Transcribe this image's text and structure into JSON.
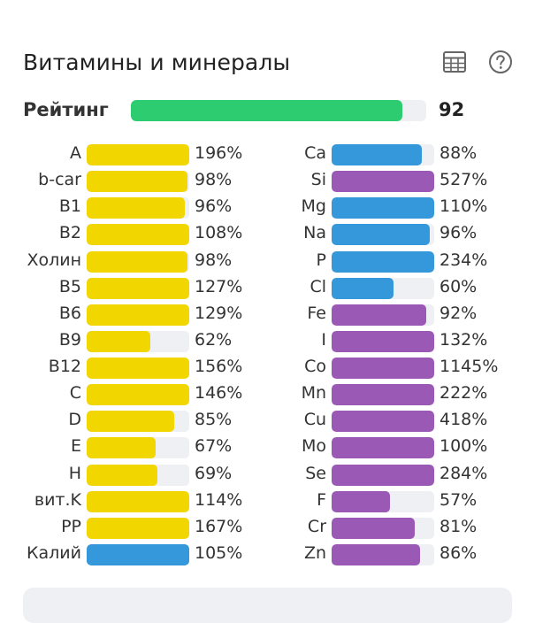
{
  "colors": {
    "vitamin": "#f2d600",
    "mineral_blue": "#3498db",
    "mineral_purple": "#9b59b6",
    "rating": "#2ecc71"
  },
  "section": {
    "title": "Витамины и минералы",
    "table_icon": "table-icon",
    "help_icon": "help-circle-icon"
  },
  "rating": {
    "label": "Рейтинг",
    "value": "92",
    "fraction": 0.92
  },
  "left_column": [
    {
      "label": "A",
      "pct": "196%",
      "fill": 1.0,
      "color": "vitamin"
    },
    {
      "label": "b-car",
      "pct": "98%",
      "fill": 0.98,
      "color": "vitamin"
    },
    {
      "label": "B1",
      "pct": "96%",
      "fill": 0.96,
      "color": "vitamin"
    },
    {
      "label": "B2",
      "pct": "108%",
      "fill": 1.0,
      "color": "vitamin"
    },
    {
      "label": "Холин",
      "pct": "98%",
      "fill": 0.98,
      "color": "vitamin"
    },
    {
      "label": "B5",
      "pct": "127%",
      "fill": 1.0,
      "color": "vitamin"
    },
    {
      "label": "B6",
      "pct": "129%",
      "fill": 1.0,
      "color": "vitamin"
    },
    {
      "label": "B9",
      "pct": "62%",
      "fill": 0.62,
      "color": "vitamin"
    },
    {
      "label": "B12",
      "pct": "156%",
      "fill": 1.0,
      "color": "vitamin"
    },
    {
      "label": "C",
      "pct": "146%",
      "fill": 1.0,
      "color": "vitamin"
    },
    {
      "label": "D",
      "pct": "85%",
      "fill": 0.85,
      "color": "vitamin"
    },
    {
      "label": "E",
      "pct": "67%",
      "fill": 0.67,
      "color": "vitamin"
    },
    {
      "label": "H",
      "pct": "69%",
      "fill": 0.69,
      "color": "vitamin"
    },
    {
      "label": "вит.K",
      "pct": "114%",
      "fill": 1.0,
      "color": "vitamin"
    },
    {
      "label": "PP",
      "pct": "167%",
      "fill": 1.0,
      "color": "vitamin"
    },
    {
      "label": "Калий",
      "pct": "105%",
      "fill": 1.0,
      "color": "mineral_blue"
    }
  ],
  "right_column": [
    {
      "label": "Ca",
      "pct": "88%",
      "fill": 0.88,
      "color": "mineral_blue"
    },
    {
      "label": "Si",
      "pct": "527%",
      "fill": 1.0,
      "color": "mineral_purple"
    },
    {
      "label": "Mg",
      "pct": "110%",
      "fill": 1.0,
      "color": "mineral_blue"
    },
    {
      "label": "Na",
      "pct": "96%",
      "fill": 0.96,
      "color": "mineral_blue"
    },
    {
      "label": "P",
      "pct": "234%",
      "fill": 1.0,
      "color": "mineral_blue"
    },
    {
      "label": "Cl",
      "pct": "60%",
      "fill": 0.6,
      "color": "mineral_blue"
    },
    {
      "label": "Fe",
      "pct": "92%",
      "fill": 0.92,
      "color": "mineral_purple"
    },
    {
      "label": "I",
      "pct": "132%",
      "fill": 1.0,
      "color": "mineral_purple"
    },
    {
      "label": "Co",
      "pct": "1145%",
      "fill": 1.0,
      "color": "mineral_purple"
    },
    {
      "label": "Mn",
      "pct": "222%",
      "fill": 1.0,
      "color": "mineral_purple"
    },
    {
      "label": "Cu",
      "pct": "418%",
      "fill": 1.0,
      "color": "mineral_purple"
    },
    {
      "label": "Mo",
      "pct": "100%",
      "fill": 1.0,
      "color": "mineral_purple"
    },
    {
      "label": "Se",
      "pct": "284%",
      "fill": 1.0,
      "color": "mineral_purple"
    },
    {
      "label": "F",
      "pct": "57%",
      "fill": 0.57,
      "color": "mineral_purple"
    },
    {
      "label": "Cr",
      "pct": "81%",
      "fill": 0.81,
      "color": "mineral_purple"
    },
    {
      "label": "Zn",
      "pct": "86%",
      "fill": 0.86,
      "color": "mineral_purple"
    }
  ]
}
